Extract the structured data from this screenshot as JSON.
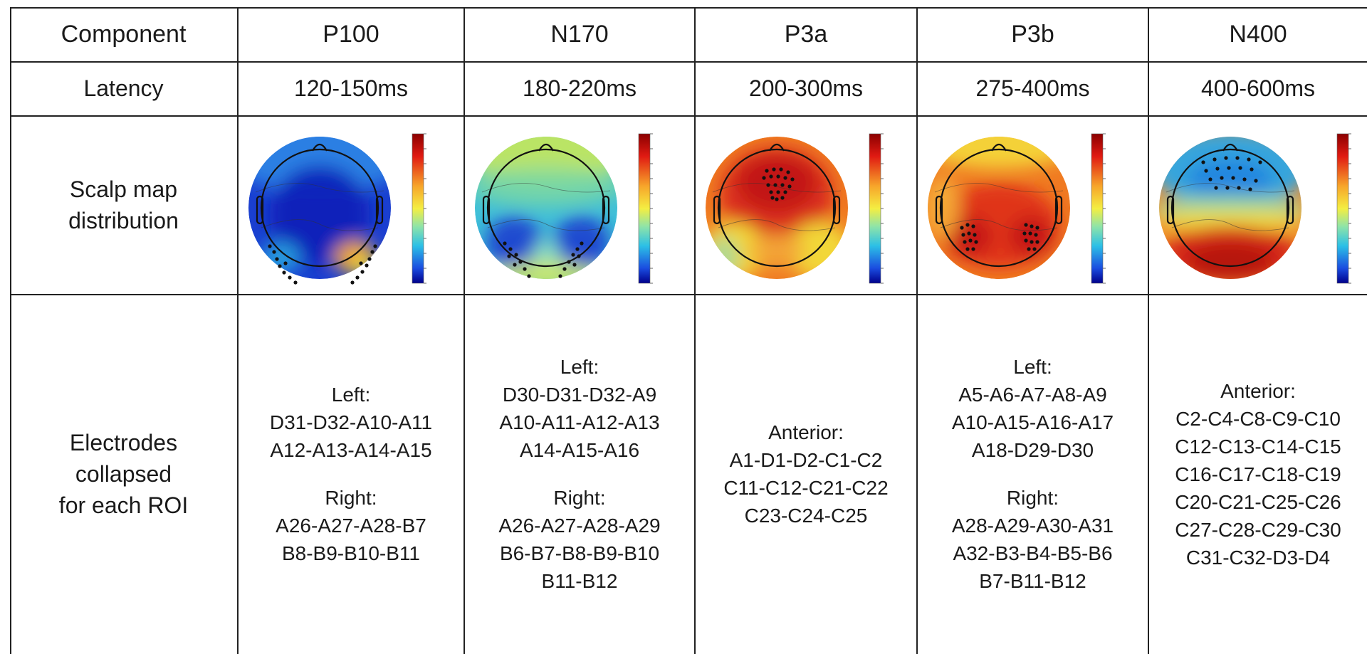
{
  "table": {
    "row_labels": {
      "component": "Component",
      "latency": "Latency",
      "scalp_line1": "Scalp map",
      "scalp_line2": "distribution",
      "elec_line1": "Electrodes",
      "elec_line2": "collapsed",
      "elec_line3": "for each ROI"
    },
    "columns": [
      {
        "component": "P100",
        "latency": "120-150ms",
        "map": {
          "theme": "blue-low",
          "electrodes": "occipital-outer"
        },
        "groups": [
          {
            "title": "Left:",
            "lines": [
              "D31-D32-A10-A11",
              "A12-A13-A14-A15"
            ]
          },
          {
            "title": "Right:",
            "lines": [
              "A26-A27-A28-B7",
              "B8-B9-B10-B11"
            ]
          }
        ]
      },
      {
        "component": "N170",
        "latency": "180-220ms",
        "map": {
          "theme": "green-blue",
          "electrodes": "occipital-inner"
        },
        "groups": [
          {
            "title": "Left:",
            "lines": [
              "D30-D31-D32-A9",
              "A10-A11-A12-A13",
              "A14-A15-A16"
            ]
          },
          {
            "title": "Right:",
            "lines": [
              "A26-A27-A28-A29",
              "B6-B7-B8-B9-B10",
              "B11-B12"
            ]
          }
        ]
      },
      {
        "component": "P3a",
        "latency": "200-300ms",
        "map": {
          "theme": "red-center",
          "electrodes": "frontal-cluster"
        },
        "groups": [
          {
            "title": "Anterior:",
            "lines": [
              "A1-D1-D2-C1-C2",
              "C11-C12-C21-C22",
              "C23-C24-C25"
            ]
          }
        ]
      },
      {
        "component": "P3b",
        "latency": "275-400ms",
        "map": {
          "theme": "red-posterior",
          "electrodes": "parietal-pair"
        },
        "groups": [
          {
            "title": "Left:",
            "lines": [
              "A5-A6-A7-A8-A9",
              "A10-A15-A16-A17",
              "A18-D29-D30"
            ]
          },
          {
            "title": "Right:",
            "lines": [
              "A28-A29-A30-A31",
              "A32-B3-B4-B5-B6",
              "B7-B11-B12"
            ]
          }
        ]
      },
      {
        "component": "N400",
        "latency": "400-600ms",
        "map": {
          "theme": "blue-frontal",
          "electrodes": "frontal-grid"
        },
        "groups": [
          {
            "title": "Anterior:",
            "lines": [
              "C2-C4-C8-C9-C10",
              "C12-C13-C14-C15",
              "C16-C17-C18-C19",
              "C20-C21-C25-C26",
              "C27-C28-C29-C30",
              "C31-C32-D3-D4"
            ]
          }
        ]
      }
    ]
  },
  "colors": {
    "border": "#222222",
    "colorbar_top": "#8b0000",
    "colorbar_bottom": "#00008b"
  }
}
